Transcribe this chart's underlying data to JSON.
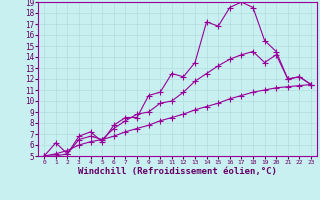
{
  "xlabel": "Windchill (Refroidissement éolien,°C)",
  "bg_color": "#c8f0f0",
  "line_color": "#990099",
  "grid_color": "#b0dede",
  "xlim": [
    -0.5,
    23.5
  ],
  "ylim": [
    5,
    19
  ],
  "xticks": [
    0,
    1,
    2,
    3,
    4,
    5,
    6,
    7,
    8,
    9,
    10,
    11,
    12,
    13,
    14,
    15,
    16,
    17,
    18,
    19,
    20,
    21,
    22,
    23
  ],
  "yticks": [
    5,
    6,
    7,
    8,
    9,
    10,
    11,
    12,
    13,
    14,
    15,
    16,
    17,
    18,
    19
  ],
  "line1_x": [
    0,
    1,
    2,
    3,
    4,
    5,
    6,
    7,
    8,
    9,
    10,
    11,
    12,
    13,
    14,
    15,
    16,
    17,
    18,
    19,
    20,
    21,
    22,
    23
  ],
  "line1_y": [
    5.0,
    6.2,
    5.2,
    6.8,
    7.2,
    6.3,
    7.8,
    8.5,
    8.5,
    10.5,
    10.8,
    12.5,
    12.2,
    13.5,
    17.2,
    16.8,
    18.5,
    19.0,
    18.5,
    15.5,
    14.5,
    12.0,
    12.2,
    11.5
  ],
  "line2_x": [
    0,
    1,
    2,
    3,
    4,
    5,
    6,
    7,
    8,
    9,
    10,
    11,
    12,
    13,
    14,
    15,
    16,
    17,
    18,
    19,
    20,
    21,
    22,
    23
  ],
  "line2_y": [
    5.0,
    5.0,
    5.2,
    6.5,
    6.8,
    6.5,
    7.5,
    8.2,
    8.8,
    9.0,
    9.8,
    10.0,
    10.8,
    11.8,
    12.5,
    13.2,
    13.8,
    14.2,
    14.5,
    13.5,
    14.2,
    12.0,
    12.2,
    11.5
  ],
  "line3_x": [
    0,
    1,
    2,
    3,
    4,
    5,
    6,
    7,
    8,
    9,
    10,
    11,
    12,
    13,
    14,
    15,
    16,
    17,
    18,
    19,
    20,
    21,
    22,
    23
  ],
  "line3_y": [
    5.0,
    5.2,
    5.5,
    6.0,
    6.3,
    6.5,
    6.8,
    7.2,
    7.5,
    7.8,
    8.2,
    8.5,
    8.8,
    9.2,
    9.5,
    9.8,
    10.2,
    10.5,
    10.8,
    11.0,
    11.2,
    11.3,
    11.4,
    11.5
  ],
  "marker": "+",
  "markersize": 4,
  "linewidth": 0.8,
  "x_tick_fontsize": 4.5,
  "y_tick_fontsize": 5.5,
  "xlabel_fontsize": 6.5,
  "xlabel_color": "#660066",
  "tick_color": "#660066"
}
